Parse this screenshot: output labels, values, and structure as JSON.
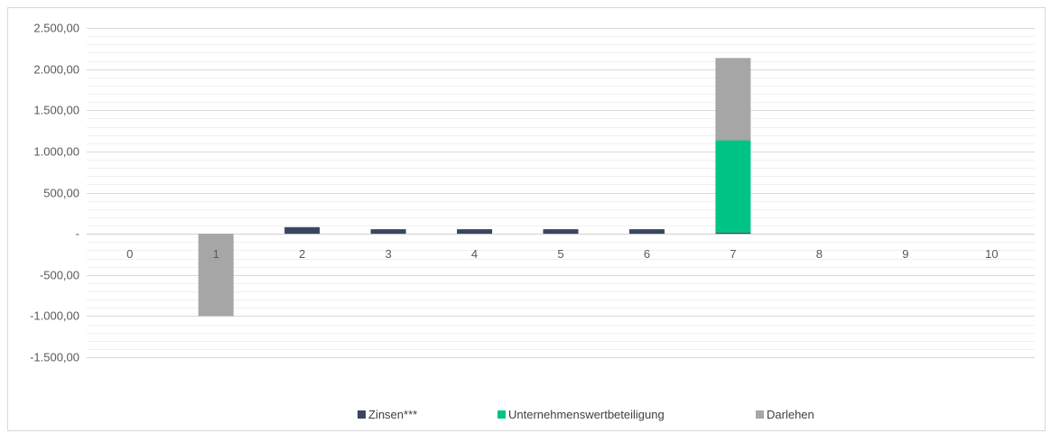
{
  "chart_data": {
    "type": "bar",
    "stacked": true,
    "categories": [
      "0",
      "1",
      "2",
      "3",
      "4",
      "5",
      "6",
      "7",
      "8",
      "9",
      "10"
    ],
    "series": [
      {
        "name": "Zinsen***",
        "color": "#3a4660",
        "values": [
          0,
          0,
          80,
          55,
          55,
          55,
          55,
          15,
          0,
          0,
          0
        ]
      },
      {
        "name": "Unternehmenswertbeteiligung",
        "color": "#00c484",
        "values": [
          0,
          0,
          0,
          0,
          0,
          0,
          0,
          1120,
          0,
          0,
          0
        ]
      },
      {
        "name": "Darlehen",
        "color": "#a6a6a6",
        "values": [
          0,
          -1000,
          0,
          0,
          0,
          0,
          0,
          1000,
          0,
          0,
          0
        ]
      }
    ],
    "ylim": [
      -1500,
      2500
    ],
    "yticks": [
      -1500,
      -1000,
      -500,
      0,
      500,
      1000,
      1500,
      2000,
      2500
    ],
    "ytick_labels": [
      "-1.500,00",
      "-1.000,00",
      "-500,00",
      "-",
      "500,00",
      "1.000,00",
      "1.500,00",
      "2.000,00",
      "2.500,00"
    ],
    "minor_gridlines": true,
    "legend_position": "bottom",
    "title": "",
    "xlabel": "",
    "ylabel": ""
  }
}
